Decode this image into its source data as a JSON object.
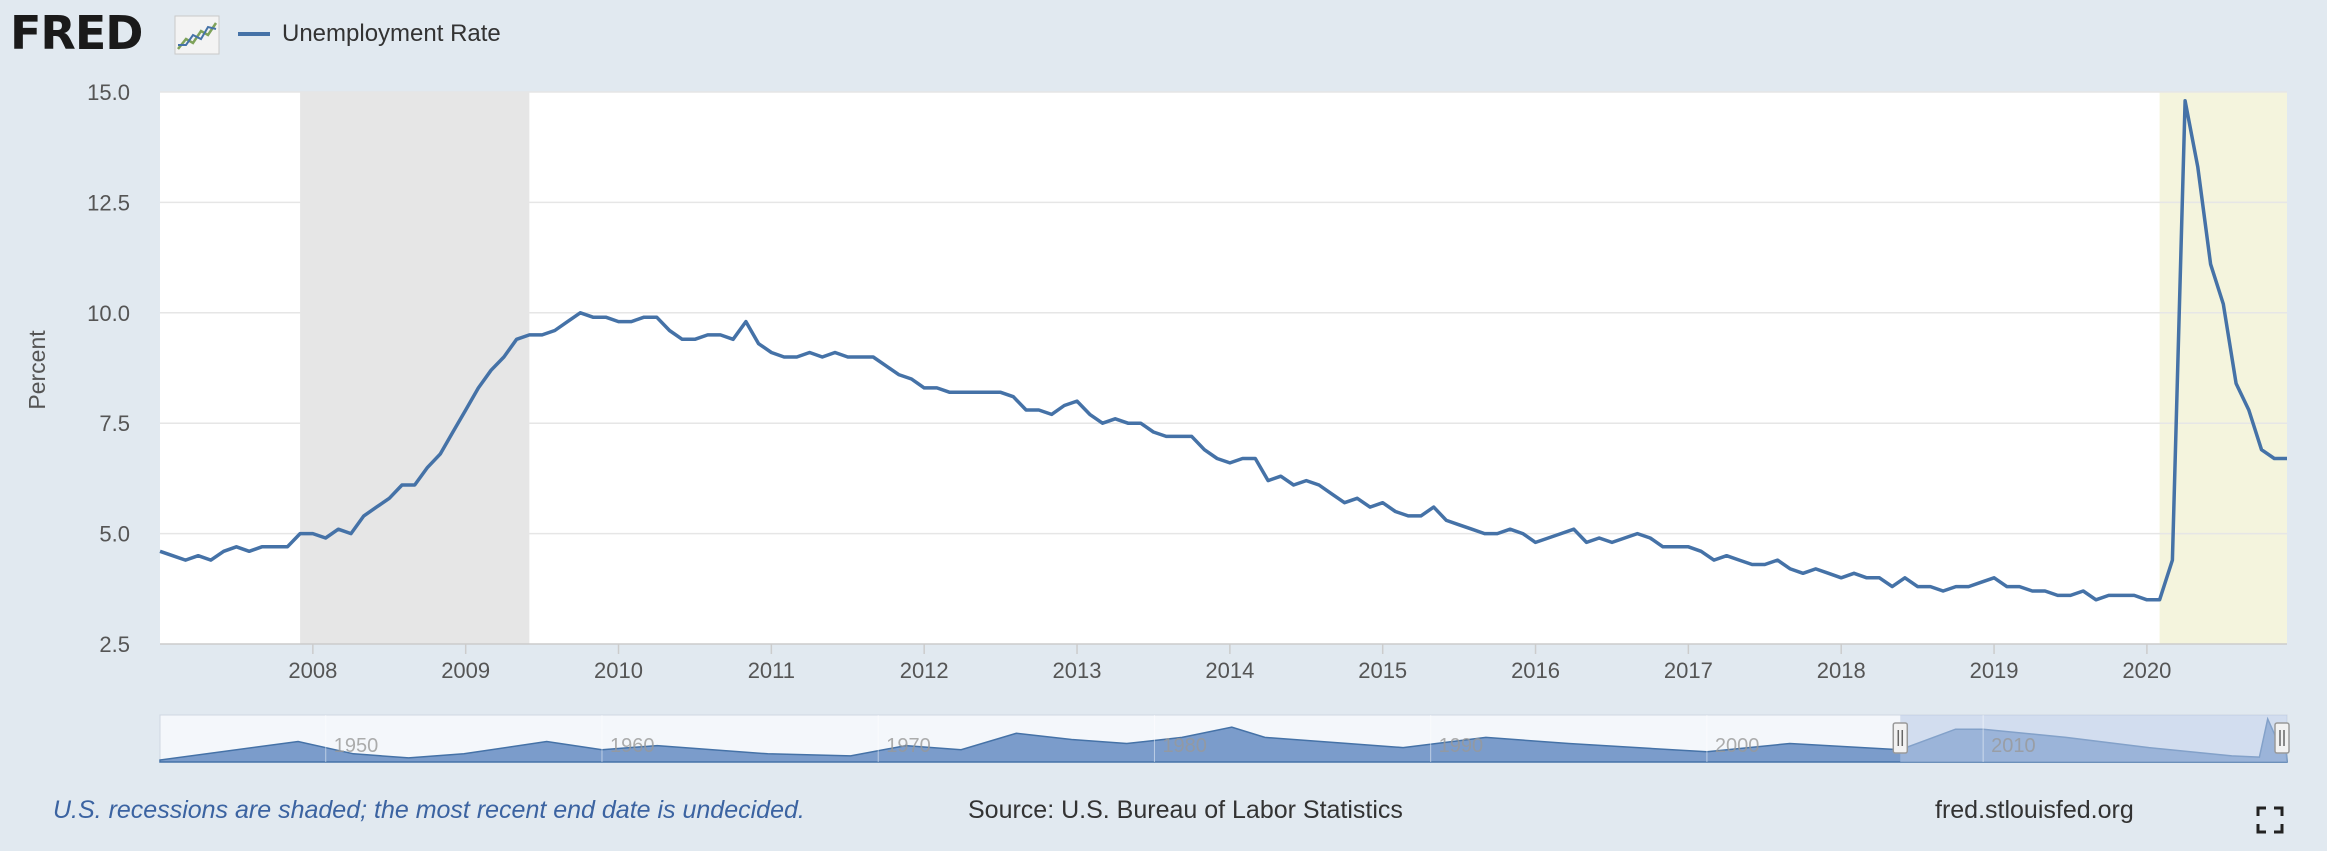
{
  "header": {
    "logo_text": "FRED",
    "logo_icon": "fred-chart-icon",
    "legend_label": "Unemployment Rate",
    "legend_color": "#4572a7"
  },
  "footer": {
    "note": "U.S. recessions are shaded; the most recent end date is undecided.",
    "source": "Source: U.S. Bureau of Labor Statistics",
    "site": "fred.stlouisfed.org",
    "fullscreen_icon": "fullscreen-icon"
  },
  "colors": {
    "background": "#e1e9f0",
    "plot_background": "#ffffff",
    "line": "#4572a7",
    "recession_shade": "#e6e6e6",
    "recession_undecided_shade": "#f4f4dd",
    "navigator_fill": "#7b9ccb",
    "navigator_mask": "#b7c8e6"
  },
  "chart_data": {
    "type": "line",
    "title": "",
    "xlabel": "",
    "ylabel": "Percent",
    "ylim": [
      2.5,
      15.0
    ],
    "yticks": [
      "2.5",
      "5.0",
      "7.5",
      "10.0",
      "12.5",
      "15.0"
    ],
    "xticks": [
      "2008",
      "2009",
      "2010",
      "2011",
      "2012",
      "2013",
      "2014",
      "2015",
      "2016",
      "2017",
      "2018",
      "2019",
      "2020"
    ],
    "grid": true,
    "legend": "top-left",
    "recessions": [
      {
        "start": "2007-12",
        "end": "2009-06"
      },
      {
        "start": "2020-02",
        "end": "2020-12"
      }
    ],
    "series": [
      {
        "name": "Unemployment Rate",
        "start": "2007-01",
        "frequency": "monthly",
        "values": [
          4.6,
          4.5,
          4.4,
          4.5,
          4.4,
          4.6,
          4.7,
          4.6,
          4.7,
          4.7,
          4.7,
          5.0,
          5.0,
          4.9,
          5.1,
          5.0,
          5.4,
          5.6,
          5.8,
          6.1,
          6.1,
          6.5,
          6.8,
          7.3,
          7.8,
          8.3,
          8.7,
          9.0,
          9.4,
          9.5,
          9.5,
          9.6,
          9.8,
          10.0,
          9.9,
          9.9,
          9.8,
          9.8,
          9.9,
          9.9,
          9.6,
          9.4,
          9.4,
          9.5,
          9.5,
          9.4,
          9.8,
          9.3,
          9.1,
          9.0,
          9.0,
          9.1,
          9.0,
          9.1,
          9.0,
          9.0,
          9.0,
          8.8,
          8.6,
          8.5,
          8.3,
          8.3,
          8.2,
          8.2,
          8.2,
          8.2,
          8.2,
          8.1,
          7.8,
          7.8,
          7.7,
          7.9,
          8.0,
          7.7,
          7.5,
          7.6,
          7.5,
          7.5,
          7.3,
          7.2,
          7.2,
          7.2,
          6.9,
          6.7,
          6.6,
          6.7,
          6.7,
          6.2,
          6.3,
          6.1,
          6.2,
          6.1,
          5.9,
          5.7,
          5.8,
          5.6,
          5.7,
          5.5,
          5.4,
          5.4,
          5.6,
          5.3,
          5.2,
          5.1,
          5.0,
          5.0,
          5.1,
          5.0,
          4.8,
          4.9,
          5.0,
          5.1,
          4.8,
          4.9,
          4.8,
          4.9,
          5.0,
          4.9,
          4.7,
          4.7,
          4.7,
          4.6,
          4.4,
          4.5,
          4.4,
          4.3,
          4.3,
          4.4,
          4.2,
          4.1,
          4.2,
          4.1,
          4.0,
          4.1,
          4.0,
          4.0,
          3.8,
          4.0,
          3.8,
          3.8,
          3.7,
          3.8,
          3.8,
          3.9,
          4.0,
          3.8,
          3.8,
          3.7,
          3.7,
          3.6,
          3.6,
          3.7,
          3.5,
          3.6,
          3.6,
          3.6,
          3.5,
          3.5,
          4.4,
          14.8,
          13.3,
          11.1,
          10.2,
          8.4,
          7.8,
          6.9,
          6.7,
          6.7
        ]
      }
    ],
    "navigator": {
      "xticks": [
        "1950",
        "1960",
        "1970",
        "1980",
        "1990",
        "2000",
        "2010"
      ]
    }
  }
}
